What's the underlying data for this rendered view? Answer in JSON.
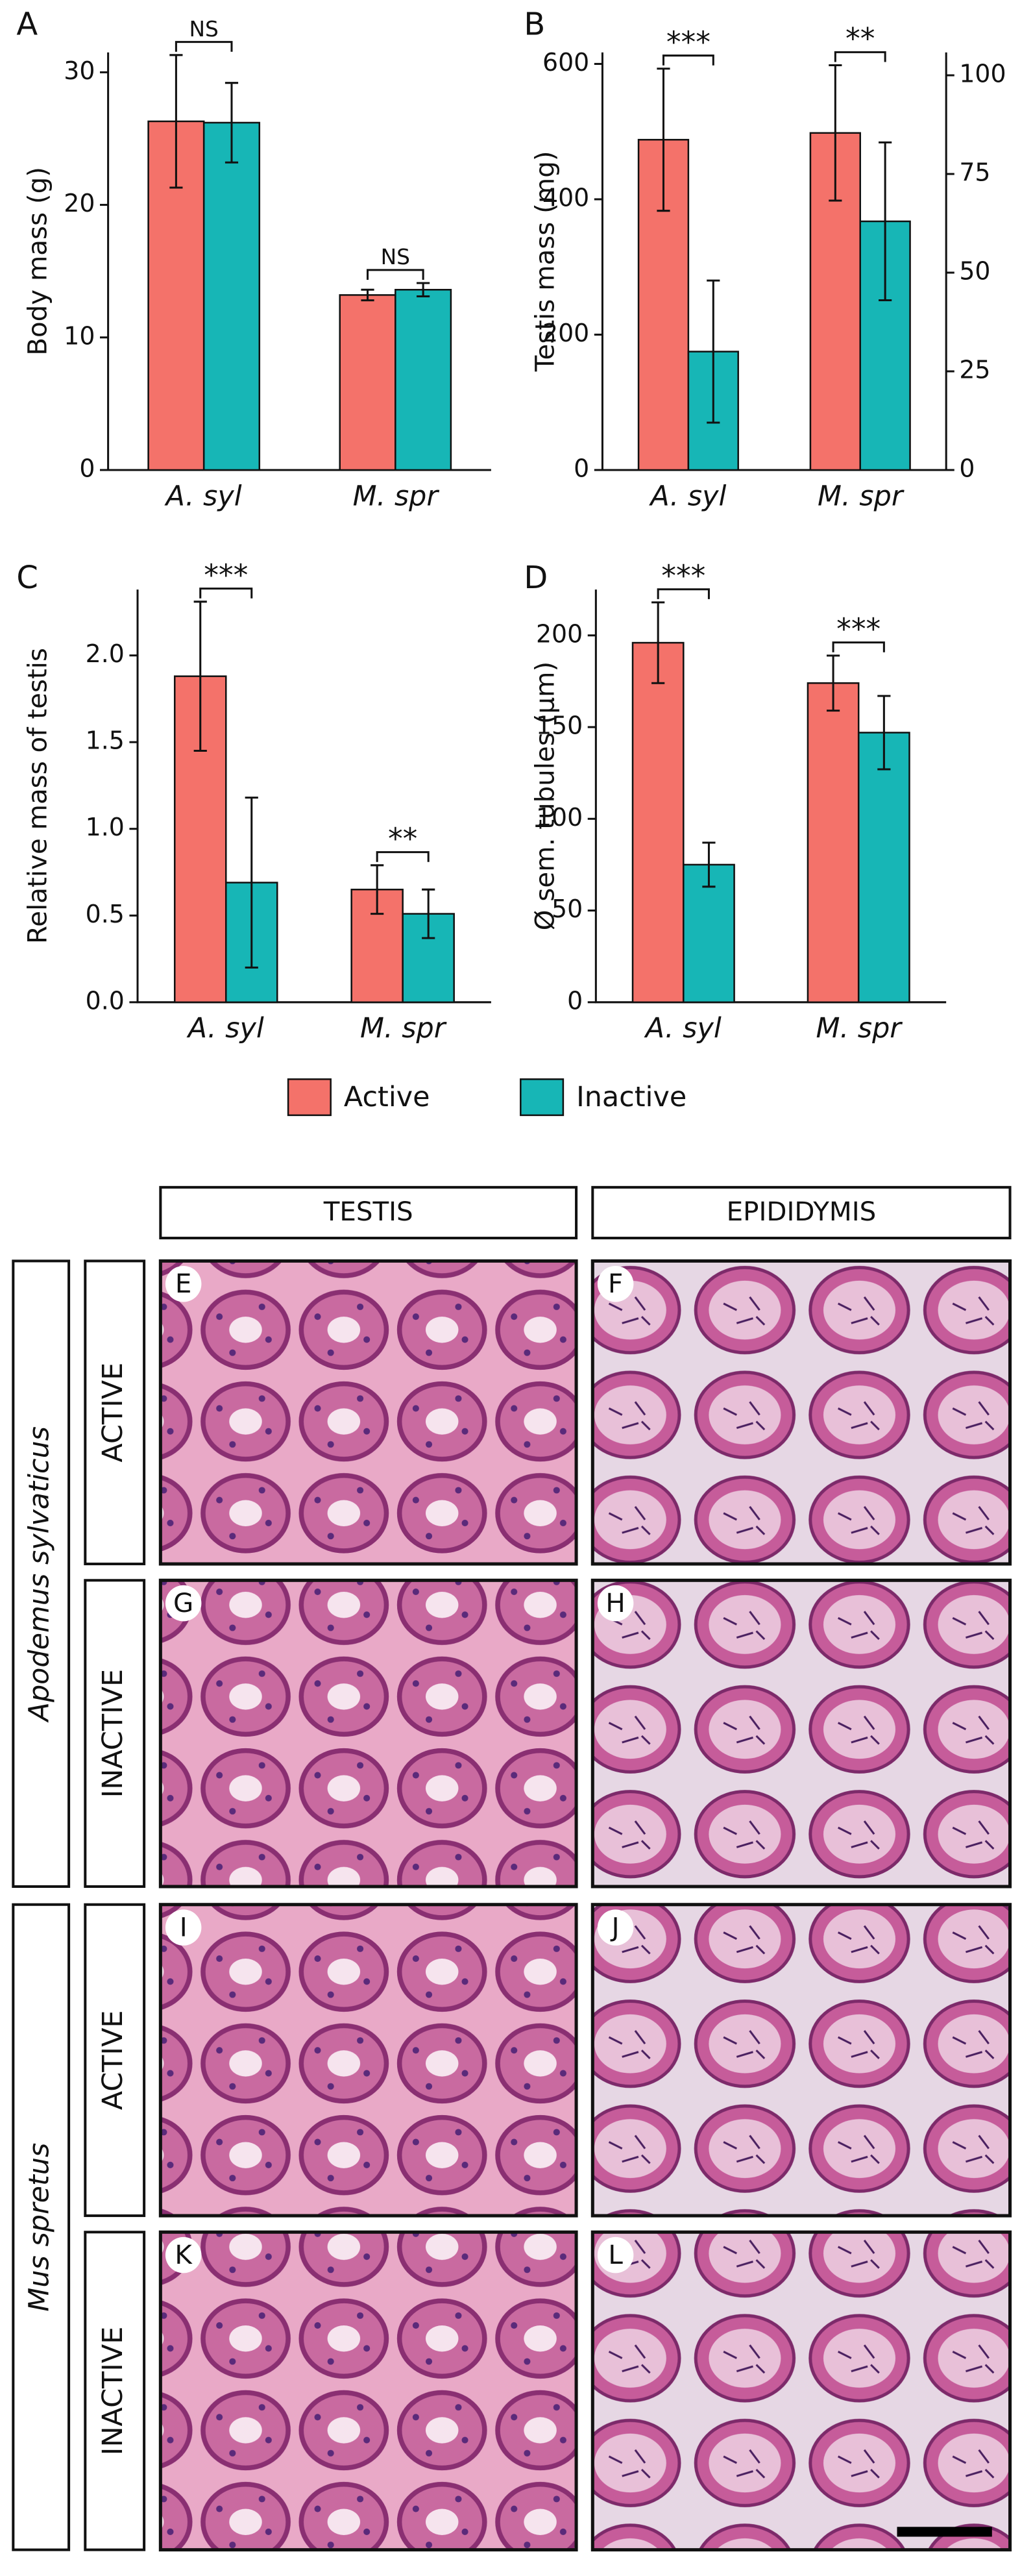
{
  "chart_data": [
    {
      "type": "bar",
      "panel": "A",
      "ylabel": "Body mass (g)",
      "categories": [
        "A. syl",
        "M. spr"
      ],
      "ylim": [
        0,
        31.5
      ],
      "yticks": [
        0,
        10,
        20,
        30
      ],
      "series": [
        {
          "name": "Active",
          "color": "#f4726a",
          "values": [
            26.3,
            13.2
          ],
          "errors": [
            5,
            0.4
          ]
        },
        {
          "name": "Inactive",
          "color": "#17b6b6",
          "values": [
            26.2,
            13.6
          ],
          "errors": [
            3,
            0.5
          ]
        }
      ],
      "annotations": [
        "NS",
        "NS"
      ]
    },
    {
      "type": "bar",
      "panel": "B",
      "ylabel": "Testis mass (mg)",
      "categories": [
        "A. syl",
        "M. spr"
      ],
      "ylim": [
        0,
        617
      ],
      "yticks": [
        0,
        200,
        400,
        600
      ],
      "y2lim": [
        0,
        105.8
      ],
      "y2ticks": [
        0,
        25,
        50,
        75,
        100
      ],
      "series": [
        {
          "name": "Active",
          "color": "#f4726a",
          "values": [
            488,
            498
          ],
          "errors": [
            105,
            100
          ]
        },
        {
          "name": "Inactive",
          "color": "#17b6b6",
          "axis": "y2",
          "values": [
            30,
            63
          ],
          "errors": [
            18,
            20
          ]
        }
      ],
      "annotations": [
        "***",
        "**"
      ]
    },
    {
      "type": "bar",
      "panel": "C",
      "ylabel": "Relative mass of testis",
      "categories": [
        "A. syl",
        "M. spr"
      ],
      "ylim": [
        0,
        2.38
      ],
      "yticks": [
        {
          "value": 0,
          "label": "0.0"
        },
        0.5,
        {
          "value": 1,
          "label": "1.0"
        },
        1.5,
        {
          "value": 2,
          "label": "2.0"
        }
      ],
      "series": [
        {
          "name": "Active",
          "color": "#f4726a",
          "values": [
            1.88,
            0.65
          ],
          "errors": [
            0.43,
            0.14
          ]
        },
        {
          "name": "Inactive",
          "color": "#17b6b6",
          "values": [
            0.69,
            0.51
          ],
          "errors": [
            0.49,
            0.14
          ]
        }
      ],
      "annotations": [
        "***",
        "**"
      ]
    },
    {
      "type": "bar",
      "panel": "D",
      "ylabel": "Ø sem. tubules (µm)",
      "categories": [
        "A. syl",
        "M. spr"
      ],
      "ylim": [
        0,
        225
      ],
      "yticks": [
        0,
        50,
        100,
        150,
        200
      ],
      "series": [
        {
          "name": "Active",
          "color": "#f4726a",
          "values": [
            196,
            174
          ],
          "errors": [
            22,
            15
          ]
        },
        {
          "name": "Inactive",
          "color": "#17b6b6",
          "values": [
            75,
            147
          ],
          "errors": [
            12,
            20
          ]
        }
      ],
      "annotations": [
        "***",
        "***"
      ]
    }
  ],
  "histology": {
    "columns": [
      "TESTIS",
      "EPIDIDYMIS"
    ],
    "rows": [
      {
        "species": "Apodemus sylvaticus",
        "conditions": [
          {
            "label": "ACTIVE",
            "panels": [
              "E",
              "F"
            ]
          },
          {
            "label": "INACTIVE",
            "panels": [
              "G",
              "H"
            ]
          }
        ]
      },
      {
        "species": "Mus spretus",
        "conditions": [
          {
            "label": "ACTIVE",
            "panels": [
              "I",
              "J"
            ]
          },
          {
            "label": "INACTIVE",
            "panels": [
              "K",
              "L"
            ]
          }
        ]
      }
    ]
  }
}
